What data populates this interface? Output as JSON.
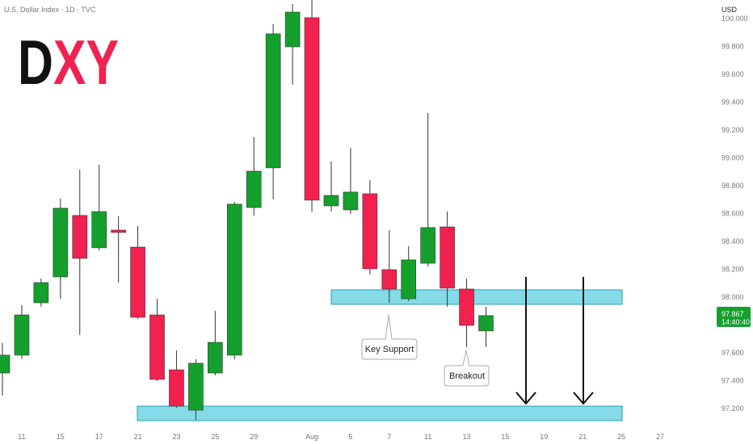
{
  "chart_data": {
    "type": "candlestick",
    "title": "U.S. Dollar Index · 1D · TVC",
    "logo": {
      "black": "D",
      "red": "XY"
    },
    "currency": "USD",
    "categories": [
      null,
      "11",
      null,
      "15",
      null,
      "17",
      null,
      "21",
      null,
      "23",
      null,
      "25",
      null,
      "29",
      null,
      null,
      "Aug",
      null,
      "5",
      null,
      "7",
      null,
      "11",
      null,
      "13",
      null,
      "15",
      null,
      "19",
      null,
      "21",
      null,
      "25",
      null,
      "27"
    ],
    "open": [
      97.455,
      97.583,
      97.959,
      98.145,
      98.586,
      98.354,
      98.481,
      98.359,
      97.872,
      97.478,
      97.188,
      97.455,
      97.583,
      98.643,
      98.928,
      99.797,
      100.006,
      98.655,
      98.626,
      98.742,
      98.197,
      97.988,
      98.243,
      98.504,
      98.058,
      97.757,
      null,
      null,
      null,
      null,
      null,
      null,
      null,
      null,
      null
    ],
    "high": [
      97.67,
      97.942,
      98.133,
      98.707,
      98.916,
      98.951,
      98.58,
      98.51,
      97.988,
      97.617,
      97.554,
      97.901,
      98.684,
      99.148,
      99.959,
      100.104,
      100.133,
      98.974,
      99.072,
      98.841,
      98.481,
      98.365,
      99.322,
      98.614,
      98.133,
      97.93,
      null,
      null,
      null,
      null,
      null,
      null,
      null,
      null,
      null
    ],
    "low": [
      97.293,
      97.554,
      97.93,
      97.988,
      97.728,
      98.336,
      98.104,
      97.843,
      97.397,
      97.206,
      97.119,
      97.438,
      97.554,
      98.586,
      98.701,
      99.525,
      98.614,
      98.614,
      98.597,
      98.162,
      97.959,
      97.971,
      98.22,
      97.93,
      97.641,
      97.641,
      null,
      null,
      null,
      null,
      null,
      null,
      null,
      null,
      null
    ],
    "close": [
      97.583,
      97.872,
      98.104,
      98.638,
      98.278,
      98.614,
      98.464,
      97.855,
      97.409,
      97.217,
      97.525,
      97.675,
      98.667,
      98.904,
      99.89,
      100.046,
      98.696,
      98.73,
      98.754,
      98.203,
      98.058,
      98.267,
      98.499,
      98.064,
      97.797,
      97.867,
      null,
      null,
      null,
      null,
      null,
      null,
      null,
      null,
      null
    ],
    "up_color": "#14a02c",
    "down_color": "#f2214f",
    "ylim": [
      97.061,
      100.133
    ],
    "yticks": [
      {
        "value": 97.2,
        "label": "97.200"
      },
      {
        "value": 97.4,
        "label": "97.400"
      },
      {
        "value": 97.6,
        "label": "97.600"
      },
      {
        "value": 98.0,
        "label": "98.000"
      },
      {
        "value": 98.2,
        "label": "98.200"
      },
      {
        "value": 98.4,
        "label": "98.400"
      },
      {
        "value": 98.6,
        "label": "98.600"
      },
      {
        "value": 98.8,
        "label": "98.800"
      },
      {
        "value": 99.0,
        "label": "99.000"
      },
      {
        "value": 99.2,
        "label": "99.200"
      },
      {
        "value": 99.4,
        "label": "99.400"
      },
      {
        "value": 99.6,
        "label": "99.600"
      },
      {
        "value": 99.8,
        "label": "99.800"
      },
      {
        "value": 100.0,
        "label": "100.000"
      }
    ],
    "zones": [
      {
        "low": 97.948,
        "high": 98.052,
        "label": "Key Support"
      },
      {
        "low": 97.113,
        "high": 97.217
      }
    ],
    "breakout_label": "Breakout",
    "last_price": 97.867,
    "countdown": "14:40:40"
  }
}
